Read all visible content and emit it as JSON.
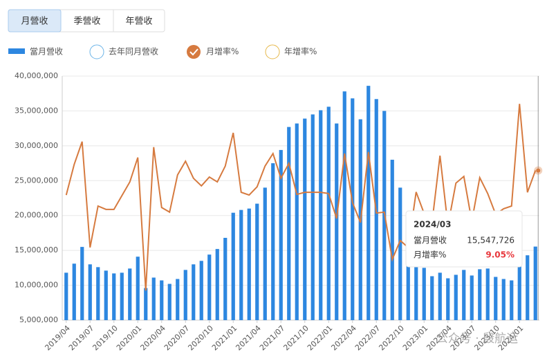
{
  "tabs": [
    "月營收",
    "季營收",
    "年營收"
  ],
  "chart_data": {
    "type": "bar_line",
    "categories": [
      "2019/04",
      null,
      null,
      "2019/07",
      null,
      null,
      "2019/10",
      null,
      null,
      "2020/01",
      null,
      null,
      "2020/04",
      null,
      null,
      "2020/07",
      null,
      null,
      "2020/10",
      null,
      null,
      "2021/01",
      null,
      null,
      "2021/04",
      null,
      null,
      "2021/07",
      null,
      null,
      "2021/10",
      null,
      null,
      "2022/01",
      null,
      null,
      "2022/04",
      null,
      null,
      "2022/07",
      null,
      null,
      "2022/10",
      null,
      null,
      "2023/01",
      null,
      null,
      "2023/04",
      null,
      null,
      "2023/07",
      null,
      null,
      "2023/10",
      null,
      null,
      "2024/01",
      null,
      "2024/03"
    ],
    "series": [
      {
        "name": "當月營收",
        "type": "bar",
        "color": "#2d87e0",
        "values": [
          11800000,
          13100000,
          15500000,
          13000000,
          12600000,
          12100000,
          11700000,
          11800000,
          12400000,
          14100000,
          9600000,
          11100000,
          10700000,
          10200000,
          10900000,
          12200000,
          13000000,
          13500000,
          14400000,
          15200000,
          16800000,
          20400000,
          20800000,
          21000000,
          21700000,
          24000000,
          27500000,
          29400000,
          32700000,
          33200000,
          33900000,
          34500000,
          35100000,
          35600000,
          33200000,
          37800000,
          36800000,
          33800000,
          38600000,
          36700000,
          35000000,
          28000000,
          24000000,
          15500000,
          13000000,
          12500000,
          11300000,
          11800000,
          11000000,
          11500000,
          12200000,
          11400000,
          12300000,
          12400000,
          11200000,
          10900000,
          10700000,
          12800000,
          14300000,
          15547726
        ]
      },
      {
        "name": "月增率%",
        "type": "line",
        "axis": "y2",
        "color": "#d67a3f",
        "values": [
          1.0,
          11.0,
          18.5,
          -16.2,
          -2.6,
          -3.7,
          -3.7,
          0.8,
          5.3,
          13.3,
          -30.3,
          16.7,
          -3.1,
          -4.6,
          7.6,
          12.1,
          6.5,
          4.0,
          6.9,
          5.3,
          10.5,
          21.4,
          1.9,
          1.0,
          3.7,
          10.5,
          14.6,
          6.5,
          11.4,
          1.2,
          1.9,
          1.9,
          1.9,
          1.5,
          -6.7,
          14.6,
          -1.5,
          -8.0,
          15.1,
          -4.9,
          -4.6,
          -20.1,
          -13.9,
          -16.2,
          2.0,
          -5.0,
          -8.0,
          13.9,
          -9.0,
          4.9,
          7.1,
          -7.6,
          6.7,
          1.5,
          -5.3,
          -3.5,
          -2.6,
          30.9,
          1.9,
          9.05
        ]
      }
    ],
    "hidden_series": [
      {
        "name": "去年同月營收",
        "color": "#6cb4e8"
      },
      {
        "name": "年增率%",
        "color": "#e6b84a"
      }
    ],
    "ylim": [
      5000000,
      40000000
    ],
    "yticks": [
      {
        "value": 5000000,
        "label": "5,000,000"
      },
      {
        "value": 10000000,
        "label": "10,000,000"
      },
      {
        "value": 15000000,
        "label": "15,000,000"
      },
      {
        "value": 20000000,
        "label": "20,000,000"
      },
      {
        "value": 25000000,
        "label": "25,000,000"
      },
      {
        "value": 30000000,
        "label": "30,000,000"
      },
      {
        "value": 35000000,
        "label": "35,000,000"
      },
      {
        "value": 40000000,
        "label": "40,000,000"
      }
    ],
    "y2lim": [
      -40,
      40
    ],
    "grid": true,
    "tooltip": {
      "rows": [
        {
          "label": "15,547,726"
        },
        {
          "label": "9.05%"
        }
      ]
    },
    "watermark": "公众号 · 殷航运"
  }
}
